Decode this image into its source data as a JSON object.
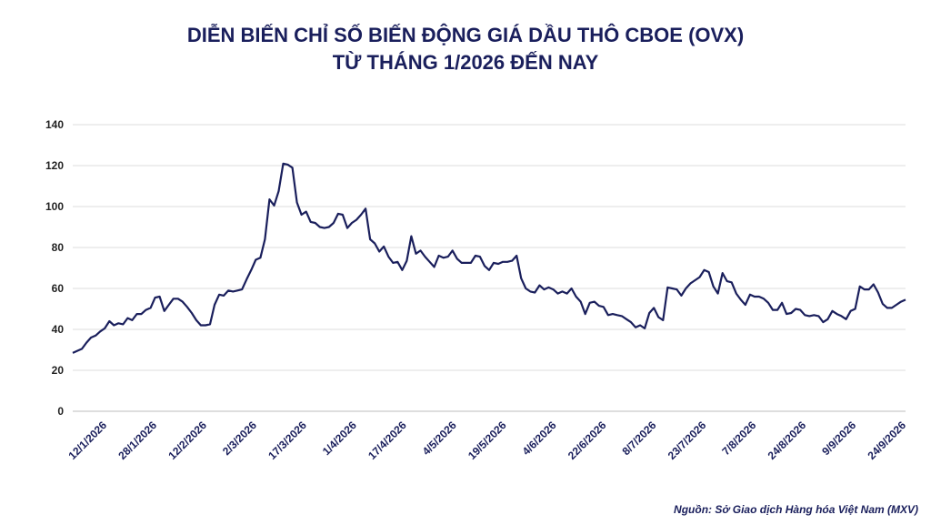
{
  "title_line1": "DIỄN BIẾN CHỈ SỐ BIẾN ĐỘNG GIÁ DẦU THÔ CBOE (OVX)",
  "title_line2": "TỪ THÁNG 1/2026 ĐẾN NAY",
  "source": "Nguồn: Sở Giao dịch Hàng hóa Việt Nam (MXV)",
  "colors": {
    "line": "#1a1f5c",
    "grid": "#dcdcdc",
    "title": "#1a1f5c"
  },
  "chart_data": {
    "type": "line",
    "title": "DIỄN BIẾN CHỈ SỐ BIẾN ĐỘNG GIÁ DẦU THÔ CBOE (OVX) TỪ THÁNG 1/2026 ĐẾN NAY",
    "xlabel": "",
    "ylabel": "",
    "ylim": [
      0,
      140
    ],
    "yticks": [
      0,
      20,
      40,
      60,
      80,
      100,
      120,
      140
    ],
    "grid": true,
    "legend": "none",
    "x_tick_labels": [
      "12/1/2026",
      "28/1/2026",
      "12/2/2026",
      "2/3/2026",
      "17/3/2026",
      "1/4/2026",
      "17/4/2026",
      "4/5/2026",
      "19/5/2026",
      "4/6/2026",
      "22/6/2026",
      "8/7/2026",
      "23/7/2026",
      "7/8/2026",
      "24/8/2026",
      "9/9/2026",
      "24/9/2026"
    ],
    "series": [
      {
        "values": [
          28.5,
          29.5,
          30.5,
          33.5,
          36.0,
          37.0,
          39.0,
          40.5,
          44.0,
          42.0,
          43.0,
          42.5,
          45.5,
          44.5,
          47.5,
          47.5,
          49.5,
          50.5,
          55.5,
          56.0,
          49.0,
          52.0,
          55.0,
          55.0,
          53.5,
          51.0,
          48.0,
          44.5,
          42.0,
          42.0,
          42.5,
          52.0,
          57.0,
          56.5,
          59.0,
          58.5,
          59.0,
          59.5,
          64.5,
          69.0,
          74.0,
          75.0,
          84.0,
          103.5,
          100.5,
          107.5,
          121.0,
          120.5,
          119.0,
          102.0,
          96.0,
          97.5,
          92.5,
          92.0,
          90.0,
          89.5,
          90.0,
          92.0,
          96.5,
          96.0,
          89.5,
          92.0,
          93.5,
          96.0,
          99.0,
          84.0,
          82.0,
          78.0,
          80.5,
          75.5,
          72.5,
          73.0,
          69.0,
          73.5,
          85.5,
          77.0,
          78.5,
          75.5,
          73.0,
          70.5,
          76.0,
          75.0,
          75.5,
          78.5,
          74.5,
          72.5,
          72.5,
          72.5,
          76.0,
          75.5,
          71.0,
          69.0,
          72.5,
          72.0,
          73.0,
          73.0,
          73.5,
          76.0,
          65.0,
          60.0,
          58.5,
          58.0,
          61.5,
          59.5,
          60.5,
          59.5,
          57.5,
          58.5,
          57.5,
          60.0,
          56.0,
          53.5,
          47.5,
          53.0,
          53.5,
          51.5,
          51.0,
          47.0,
          47.5,
          47.0,
          46.5,
          45.0,
          43.5,
          41.0,
          42.0,
          40.5,
          48.0,
          50.5,
          46.0,
          44.5,
          60.5,
          60.0,
          59.5,
          56.5,
          60.0,
          62.5,
          64.0,
          65.5,
          69.0,
          68.0,
          61.0,
          57.5,
          67.5,
          63.5,
          63.0,
          57.5,
          54.5,
          52.0,
          57.0,
          56.0,
          56.0,
          55.0,
          53.0,
          49.5,
          49.5,
          53.0,
          47.5,
          48.0,
          50.0,
          49.5,
          47.0,
          46.5,
          47.0,
          46.5,
          43.5,
          45.0,
          49.0,
          47.5,
          46.5,
          45.0,
          49.0,
          50.0,
          61.0,
          59.5,
          59.5,
          62.0,
          58.0,
          52.5,
          50.5,
          50.5,
          52.0,
          53.5,
          54.5
        ]
      }
    ]
  }
}
